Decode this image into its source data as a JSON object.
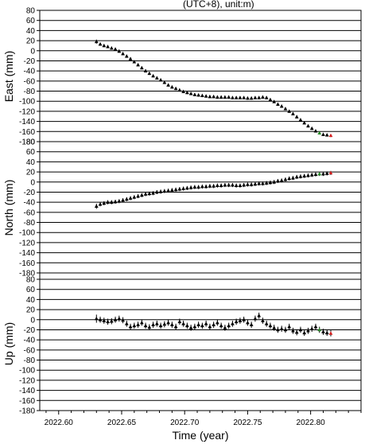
{
  "header": {
    "partial_title": "(UTC+8), unit:m)"
  },
  "chart_data": [
    {
      "type": "scatter",
      "ylabel": "East (mm)",
      "xlabel": "",
      "xlim": [
        2022.585,
        2022.84
      ],
      "ylim": [
        -180,
        80
      ],
      "yticks": [
        80,
        60,
        40,
        20,
        0,
        -20,
        -40,
        -60,
        -80,
        -100,
        -120,
        -140,
        -160,
        -180
      ],
      "grid": true,
      "x": [
        2022.63,
        2022.633,
        2022.636,
        2022.639,
        2022.642,
        2022.645,
        2022.648,
        2022.651,
        2022.654,
        2022.657,
        2022.66,
        2022.663,
        2022.666,
        2022.669,
        2022.672,
        2022.675,
        2022.678,
        2022.681,
        2022.684,
        2022.687,
        2022.69,
        2022.693,
        2022.696,
        2022.699,
        2022.702,
        2022.705,
        2022.708,
        2022.711,
        2022.714,
        2022.717,
        2022.72,
        2022.723,
        2022.726,
        2022.729,
        2022.732,
        2022.735,
        2022.738,
        2022.741,
        2022.744,
        2022.747,
        2022.75,
        2022.753,
        2022.756,
        2022.759,
        2022.762,
        2022.765,
        2022.768,
        2022.771,
        2022.774,
        2022.777,
        2022.78,
        2022.783,
        2022.786,
        2022.789,
        2022.792,
        2022.795,
        2022.798,
        2022.801,
        2022.804,
        2022.807,
        2022.81,
        2022.813,
        2022.816
      ],
      "y": [
        18,
        13,
        10,
        8,
        5,
        3,
        -1,
        -6,
        -11,
        -16,
        -22,
        -28,
        -34,
        -40,
        -45,
        -50,
        -54,
        -58,
        -63,
        -68,
        -72,
        -75,
        -78,
        -81,
        -83,
        -85,
        -87,
        -88,
        -89,
        -90,
        -91,
        -91,
        -92,
        -92,
        -92,
        -92,
        -93,
        -93,
        -93,
        -93,
        -94,
        -94,
        -93,
        -93,
        -92,
        -93,
        -97,
        -101,
        -106,
        -110,
        -115,
        -120,
        -125,
        -131,
        -137,
        -143,
        -149,
        -154,
        -159,
        -163,
        -166,
        -167,
        -168
      ],
      "error": [
        4,
        3,
        3,
        3,
        3,
        3,
        3,
        3,
        3,
        3,
        3,
        3,
        3,
        3,
        3,
        3,
        3,
        3,
        3,
        3,
        3,
        3,
        3,
        3,
        3,
        3,
        3,
        3,
        3,
        3,
        3,
        3,
        3,
        3,
        3,
        3,
        3,
        3,
        3,
        3,
        3,
        3,
        3,
        3,
        3,
        3,
        3,
        3,
        3,
        3,
        3,
        3,
        3,
        3,
        3,
        3,
        3,
        3,
        3,
        3,
        3,
        3,
        3
      ]
    },
    {
      "type": "scatter",
      "ylabel": "North (mm)",
      "xlabel": "",
      "xlim": [
        2022.585,
        2022.84
      ],
      "ylim": [
        -180,
        80
      ],
      "yticks": [
        80,
        60,
        40,
        20,
        0,
        -20,
        -40,
        -60,
        -80,
        -100,
        -120,
        -140,
        -160,
        -180
      ],
      "grid": true,
      "x": [
        2022.63,
        2022.633,
        2022.636,
        2022.639,
        2022.642,
        2022.645,
        2022.648,
        2022.651,
        2022.654,
        2022.657,
        2022.66,
        2022.663,
        2022.666,
        2022.669,
        2022.672,
        2022.675,
        2022.678,
        2022.681,
        2022.684,
        2022.687,
        2022.69,
        2022.693,
        2022.696,
        2022.699,
        2022.702,
        2022.705,
        2022.708,
        2022.711,
        2022.714,
        2022.717,
        2022.72,
        2022.723,
        2022.726,
        2022.729,
        2022.732,
        2022.735,
        2022.738,
        2022.741,
        2022.744,
        2022.747,
        2022.75,
        2022.753,
        2022.756,
        2022.759,
        2022.762,
        2022.765,
        2022.768,
        2022.771,
        2022.774,
        2022.777,
        2022.78,
        2022.783,
        2022.786,
        2022.789,
        2022.792,
        2022.795,
        2022.798,
        2022.801,
        2022.804,
        2022.807,
        2022.81,
        2022.813,
        2022.816
      ],
      "y": [
        -48,
        -44,
        -42,
        -40,
        -40,
        -39,
        -38,
        -36,
        -34,
        -32,
        -30,
        -28,
        -26,
        -24,
        -23,
        -22,
        -20,
        -19,
        -18,
        -17,
        -16,
        -15,
        -14,
        -13,
        -12,
        -11,
        -10,
        -10,
        -9,
        -9,
        -8,
        -8,
        -7,
        -7,
        -6,
        -6,
        -6,
        -7,
        -7,
        -6,
        -5,
        -5,
        -4,
        -3,
        -3,
        -2,
        -1,
        0,
        2,
        3,
        5,
        7,
        8,
        10,
        11,
        12,
        13,
        14,
        15,
        16,
        16,
        17,
        18
      ],
      "error": [
        5,
        4,
        4,
        4,
        4,
        4,
        4,
        4,
        4,
        4,
        4,
        4,
        4,
        4,
        4,
        4,
        4,
        4,
        4,
        4,
        4,
        4,
        4,
        4,
        4,
        4,
        4,
        4,
        4,
        4,
        4,
        4,
        4,
        4,
        4,
        4,
        4,
        4,
        4,
        4,
        4,
        4,
        4,
        4,
        4,
        4,
        4,
        4,
        4,
        4,
        4,
        4,
        4,
        4,
        4,
        4,
        4,
        4,
        4,
        4,
        4,
        4,
        4
      ]
    },
    {
      "type": "scatter",
      "ylabel": "Up (mm)",
      "xlabel": "Time (year)",
      "xlim": [
        2022.585,
        2022.84
      ],
      "ylim": [
        -180,
        80
      ],
      "yticks": [
        80,
        60,
        40,
        20,
        0,
        -20,
        -40,
        -60,
        -80,
        -100,
        -120,
        -140,
        -160,
        -180
      ],
      "xticks": [
        "2022.60",
        "2022.65",
        "2022.70",
        "2022.75",
        "2022.80"
      ],
      "grid": true,
      "x": [
        2022.63,
        2022.633,
        2022.636,
        2022.639,
        2022.642,
        2022.645,
        2022.648,
        2022.651,
        2022.654,
        2022.657,
        2022.66,
        2022.663,
        2022.666,
        2022.669,
        2022.672,
        2022.675,
        2022.678,
        2022.681,
        2022.684,
        2022.687,
        2022.69,
        2022.693,
        2022.696,
        2022.699,
        2022.702,
        2022.705,
        2022.708,
        2022.711,
        2022.714,
        2022.717,
        2022.72,
        2022.723,
        2022.726,
        2022.729,
        2022.732,
        2022.735,
        2022.738,
        2022.741,
        2022.744,
        2022.747,
        2022.75,
        2022.753,
        2022.756,
        2022.759,
        2022.762,
        2022.765,
        2022.768,
        2022.771,
        2022.774,
        2022.777,
        2022.78,
        2022.783,
        2022.786,
        2022.789,
        2022.792,
        2022.795,
        2022.798,
        2022.801,
        2022.804,
        2022.807,
        2022.81,
        2022.813,
        2022.816
      ],
      "y": [
        2,
        0,
        -2,
        -4,
        -3,
        0,
        2,
        -1,
        -8,
        -14,
        -12,
        -10,
        -6,
        -12,
        -15,
        -10,
        -8,
        -12,
        -9,
        -6,
        -10,
        -14,
        -4,
        -8,
        -12,
        -16,
        -14,
        -10,
        -12,
        -8,
        -14,
        -10,
        -6,
        -12,
        -16,
        -12,
        -8,
        -4,
        -2,
        0,
        -6,
        -10,
        2,
        8,
        -2,
        -8,
        -12,
        -16,
        -20,
        -18,
        -20,
        -14,
        -22,
        -25,
        -20,
        -26,
        -22,
        -18,
        -14,
        -20,
        -24,
        -26,
        -27
      ],
      "error": [
        8,
        6,
        6,
        6,
        6,
        6,
        6,
        6,
        6,
        6,
        6,
        6,
        6,
        6,
        6,
        6,
        6,
        6,
        6,
        6,
        6,
        6,
        6,
        6,
        6,
        6,
        6,
        6,
        6,
        6,
        6,
        6,
        6,
        6,
        6,
        6,
        6,
        6,
        6,
        6,
        6,
        6,
        6,
        6,
        6,
        6,
        6,
        6,
        6,
        6,
        6,
        6,
        6,
        6,
        6,
        6,
        6,
        6,
        6,
        6,
        6,
        6,
        6
      ]
    }
  ],
  "colors": {
    "marker": "#000000",
    "last_marker": "#d62020",
    "mid_marker": "#2a8a2a",
    "grid": "#000000"
  }
}
